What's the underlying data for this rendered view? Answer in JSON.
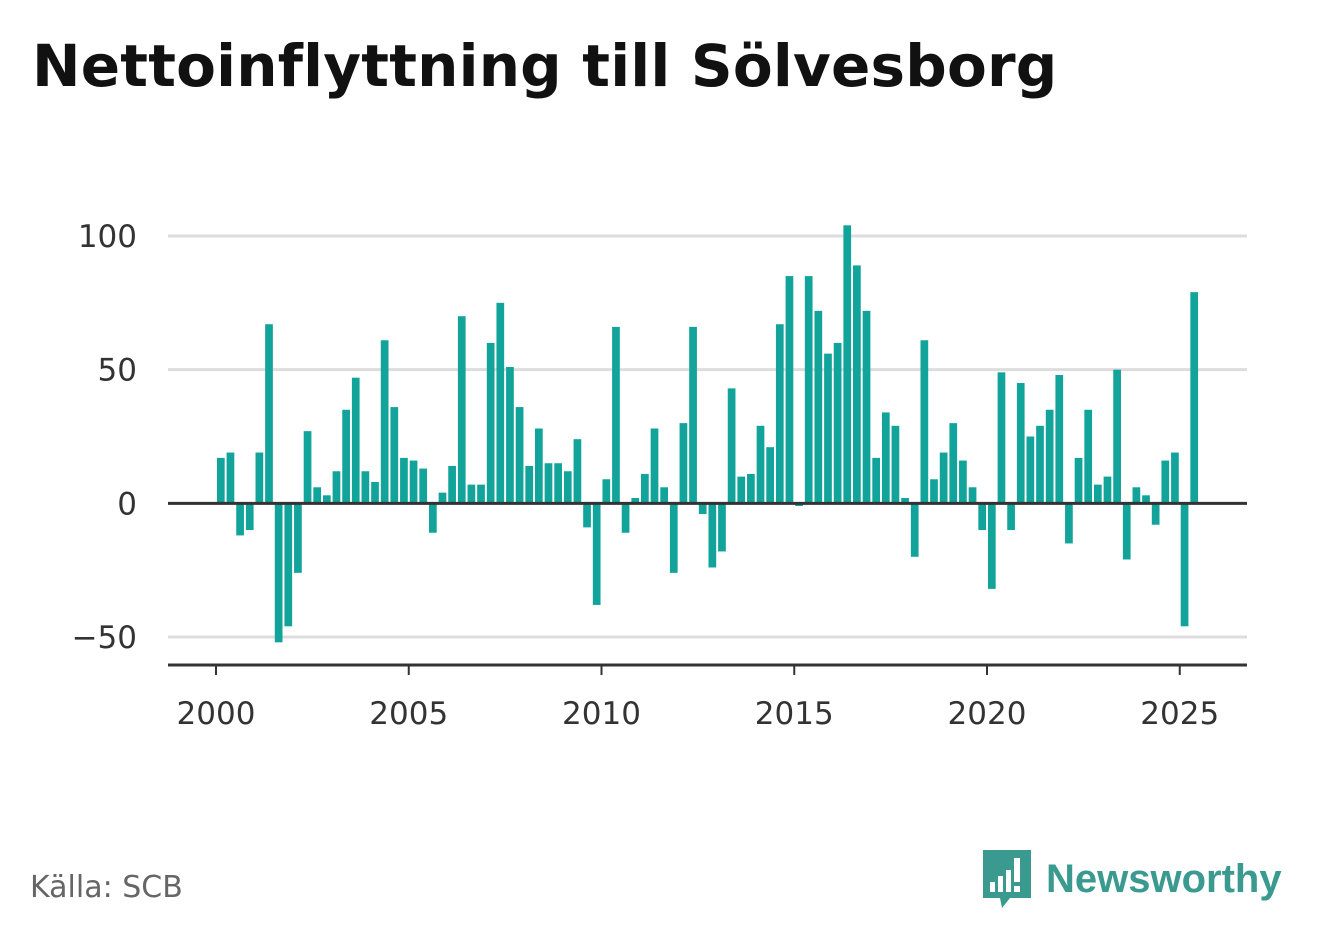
{
  "title": "Nettoinflyttning till Sölvesborg",
  "source": "Källa: SCB",
  "brand": {
    "name": "Newsworthy",
    "icon": "bar-chart-speech-bubble-icon",
    "color": "#3a9a90"
  },
  "colors": {
    "bar": "#12a39b",
    "grid": "#dddddd",
    "axis": "#333333"
  },
  "chart_data": {
    "type": "bar",
    "title": "Nettoinflyttning till Sölvesborg",
    "xlabel": "",
    "ylabel": "",
    "x_axis": {
      "type": "time",
      "min": 1998.75,
      "max": 2026.75,
      "ticks": [
        2000,
        2005,
        2010,
        2015,
        2020,
        2025
      ]
    },
    "y_axis": {
      "min": -60,
      "max": 110,
      "ticks": [
        -50,
        0,
        50,
        100
      ]
    },
    "grid": true,
    "frequency": "quarterly",
    "first_period": "2000 Q1",
    "values": [
      17,
      19,
      -12,
      -10,
      19,
      67,
      -52,
      -46,
      -26,
      27,
      6,
      3,
      12,
      35,
      47,
      12,
      8,
      61,
      36,
      17,
      16,
      13,
      -11,
      4,
      14,
      70,
      7,
      7,
      60,
      75,
      51,
      36,
      14,
      28,
      15,
      15,
      12,
      24,
      -9,
      -38,
      9,
      66,
      -11,
      2,
      11,
      28,
      6,
      -26,
      30,
      66,
      -4,
      -24,
      -18,
      43,
      10,
      11,
      29,
      21,
      67,
      85,
      -1,
      85,
      72,
      56,
      60,
      104,
      89,
      72,
      17,
      34,
      29,
      2,
      -20,
      61,
      9,
      19,
      30,
      16,
      6,
      -10,
      -32,
      49,
      -10,
      45,
      25,
      29,
      35,
      48,
      -15,
      17,
      35,
      7,
      10,
      50,
      -21,
      6,
      3,
      -8,
      16,
      19,
      -46,
      79
    ]
  }
}
